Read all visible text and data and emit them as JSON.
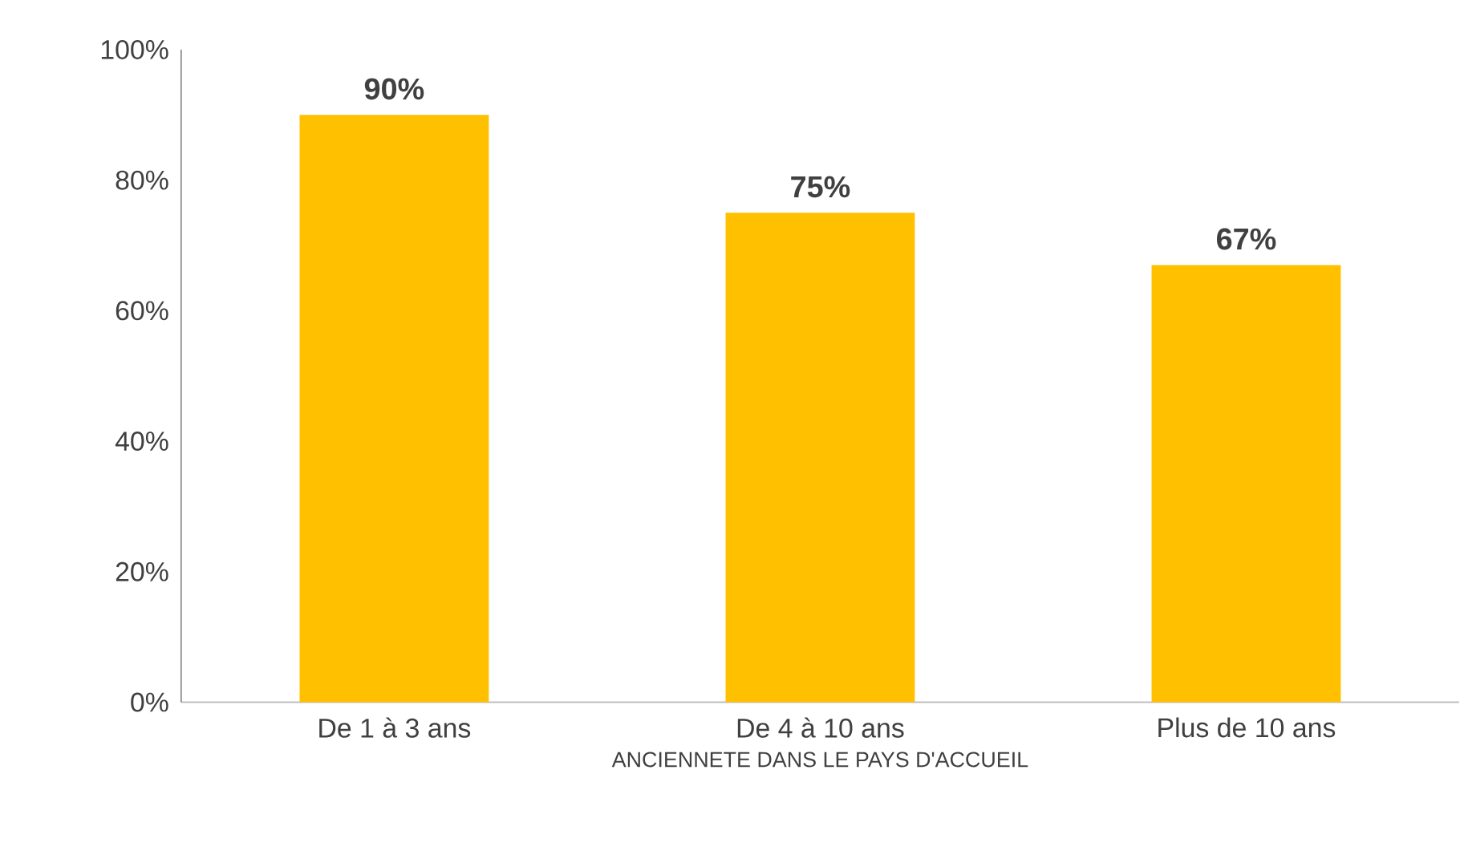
{
  "chart_data": {
    "type": "bar",
    "xlabel": "ANCIENNETE DANS LE PAYS D'ACCUEIL",
    "categories": [
      "De 1 à 3 ans",
      "De 4 à 10 ans",
      "Plus de 10 ans"
    ],
    "values": [
      90,
      75,
      67
    ],
    "value_labels": [
      "90%",
      "75%",
      "67%"
    ],
    "color": "#ffc000",
    "ylim": [
      0,
      100
    ],
    "yticks": [
      {
        "value": 0,
        "label": "0%"
      },
      {
        "value": 20,
        "label": "20%"
      },
      {
        "value": 40,
        "label": "40%"
      },
      {
        "value": 60,
        "label": "60%"
      },
      {
        "value": 80,
        "label": "80%"
      },
      {
        "value": 100,
        "label": "100%"
      }
    ]
  }
}
